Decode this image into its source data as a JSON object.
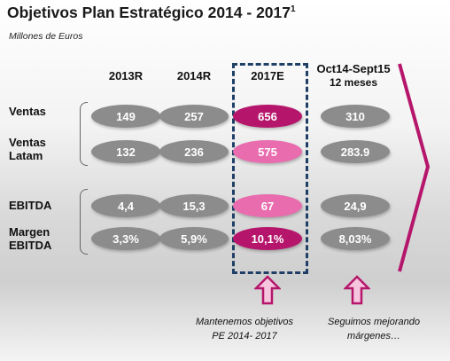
{
  "title": {
    "text": "Objetivos Plan Estratégico 2014 - 2017",
    "superscript": "1"
  },
  "subtitle": "Millones de Euros",
  "columns": [
    "2013R",
    "2014R",
    "2017E",
    "Oct14-Sept15"
  ],
  "column_sub": "12 meses",
  "rows": [
    {
      "label": "Ventas",
      "values": [
        "149",
        "257",
        "656",
        "310"
      ]
    },
    {
      "label_line1": "Ventas",
      "label_line2": "Latam",
      "values": [
        "132",
        "236",
        "575",
        "283.9"
      ]
    },
    {
      "label": "EBITDA",
      "values": [
        "4,4",
        "15,3",
        "67",
        "24,9"
      ]
    },
    {
      "label_line1": "Margen",
      "label_line2": "EBITDA",
      "values": [
        "3,3%",
        "5,9%",
        "10,1%",
        "8,03%"
      ]
    }
  ],
  "notes": {
    "left_line1": "Mantenemos objetivos",
    "left_line2": "PE 2014- 2017",
    "right_line1": "Seguimos mejorando",
    "right_line2": "márgenes…"
  },
  "colors": {
    "grey": "#8c8c8c",
    "magenta": "#b5166b",
    "pink": "#e86cae",
    "dash_box": "#1f3f66",
    "chevron": "#b5166b"
  },
  "icons": [
    "up-arrow-icon",
    "chevron-right-icon"
  ]
}
